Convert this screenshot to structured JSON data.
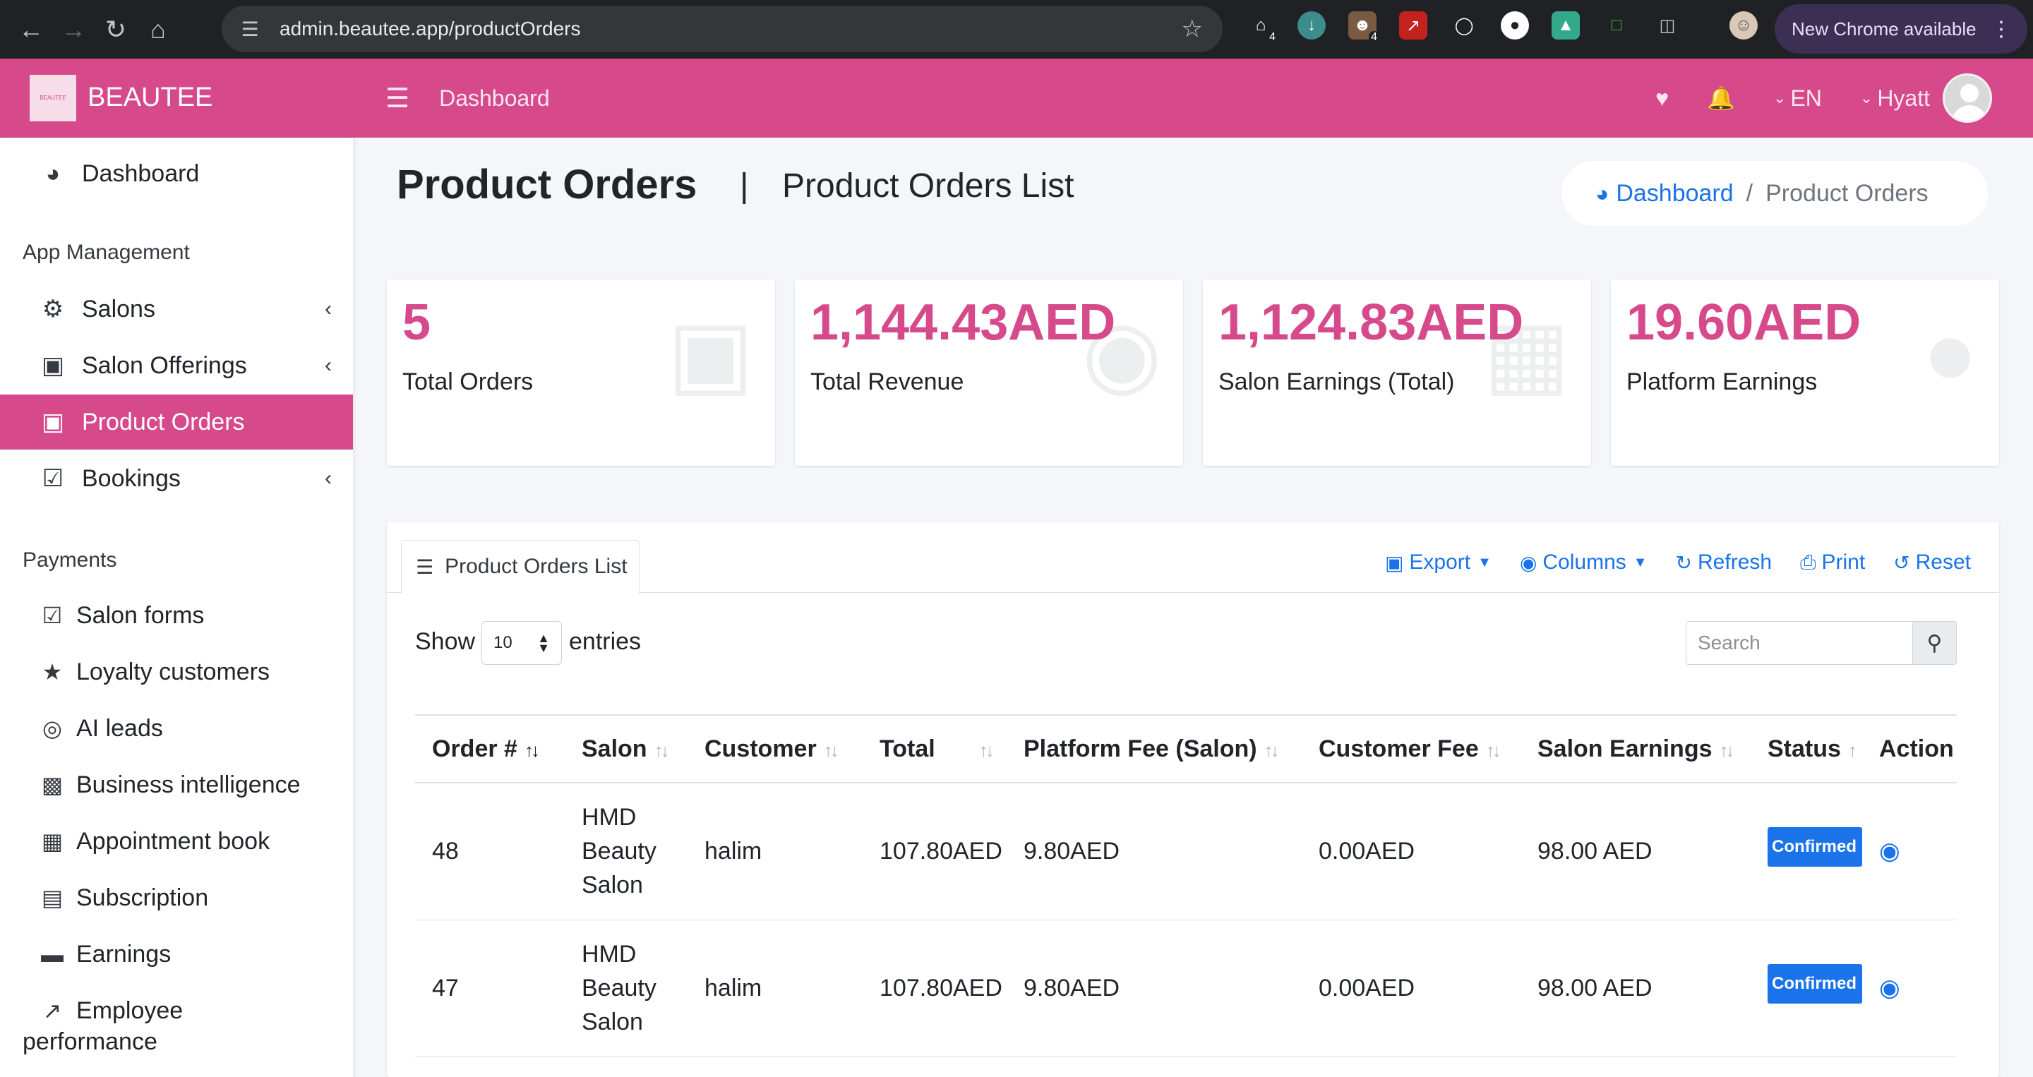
{
  "browser": {
    "url": "admin.beautee.app/productOrders",
    "ext_badge_1": "4",
    "ext_badge_2": "4",
    "new_chrome": "New Chrome available"
  },
  "app": {
    "logo_text": "BEAUTEE",
    "brand": "BEAUTEE",
    "top_title": "Dashboard",
    "language": "EN",
    "user": "Hyatt"
  },
  "sidebar": {
    "dashboard": "Dashboard",
    "section_app": "App Management",
    "salons": "Salons",
    "salon_offerings": "Salon Offerings",
    "product_orders": "Product Orders",
    "bookings": "Bookings",
    "section_payments": "Payments",
    "salon_forms": "Salon forms",
    "loyalty_customers": "Loyalty customers",
    "ai_leads": "AI leads",
    "business_intelligence": "Business intelligence",
    "appointment_book": "Appointment book",
    "subscription": "Subscription",
    "earnings": "Earnings",
    "employee_performance_1": "Employee",
    "employee_performance_2": "performance"
  },
  "header": {
    "title": "Product Orders",
    "separator": "|",
    "subtitle": "Product Orders List",
    "breadcrumb_home": "Dashboard",
    "breadcrumb_sep": "/",
    "breadcrumb_current": "Product Orders"
  },
  "stats": [
    {
      "value": "5",
      "label": "Total Orders"
    },
    {
      "value": "1,144.43AED",
      "label": "Total Revenue"
    },
    {
      "value": "1,124.83AED",
      "label": "Salon Earnings (Total)"
    },
    {
      "value": "19.60AED",
      "label": "Platform Earnings"
    }
  ],
  "list": {
    "tab": "Product Orders List",
    "export": "Export",
    "columns": "Columns",
    "refresh": "Refresh",
    "print": "Print",
    "reset": "Reset",
    "show": "Show",
    "entries_value": "10",
    "entries": "entries",
    "search_placeholder": "Search"
  },
  "table": {
    "headers": [
      "Order #",
      "Salon",
      "Customer",
      "Total",
      "Platform Fee (Salon)",
      "Customer Fee",
      "Salon Earnings",
      "Status",
      "Action"
    ],
    "rows": [
      {
        "order": "48",
        "salon_1": "HMD",
        "salon_2": "Beauty",
        "salon_3": "Salon",
        "customer": "halim",
        "total": "107.80AED",
        "platform_fee": "9.80AED",
        "customer_fee": "0.00AED",
        "salon_earnings": "98.00 AED",
        "status": "Confirmed"
      },
      {
        "order": "47",
        "salon_1": "HMD",
        "salon_2": "Beauty",
        "salon_3": "Salon",
        "customer": "halim",
        "total": "107.80AED",
        "platform_fee": "9.80AED",
        "customer_fee": "0.00AED",
        "salon_earnings": "98.00 AED",
        "status": "Confirmed"
      }
    ]
  }
}
